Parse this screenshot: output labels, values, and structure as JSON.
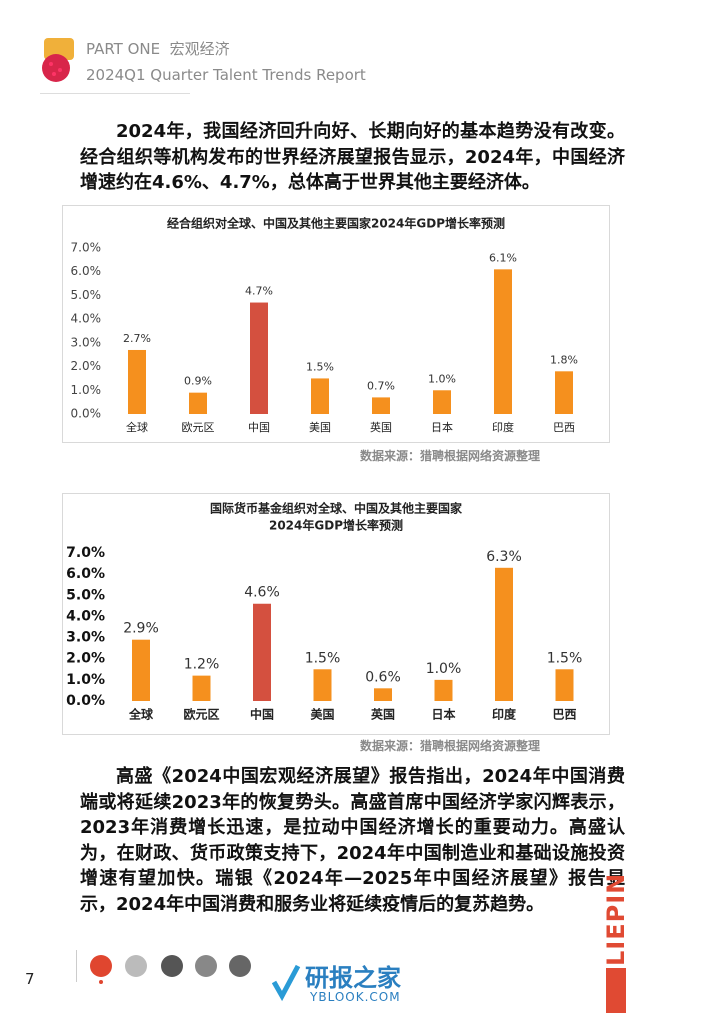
{
  "header": {
    "part": "PART ONE",
    "section": "宏观经济",
    "report": "2024Q1 Quarter Talent Trends Report"
  },
  "paragraphs": [
    "2024年，我国经济回升向好、长期向好的基本趋势没有改变。经合组织等机构发布的世界经济展望报告显示，2024年，中国经济增速约在4.6%、4.7%，总体高于世界其他主要经济体。",
    "高盛《2024中国宏观经济展望》报告指出，2024年中国消费端或将延续2023年的恢复势头。高盛首席中国经济学家闪辉表示，2023年消费增长迅速，是拉动中国经济增长的重要动力。高盛认为，在财政、货币政策支持下，2024年中国制造业和基础设施投资增速有望加快。瑞银《2024年—2025年中国经济展望》报告显示，2024年中国消费和服务业将延续疫情后的复苏趋势。"
  ],
  "chart_data": [
    {
      "type": "bar",
      "title": [
        "经合组织对全球、中国及其他主要国家2024年GDP增长率预测"
      ],
      "categories": [
        "全球",
        "欧元区",
        "中国",
        "美国",
        "英国",
        "日本",
        "印度",
        "巴西"
      ],
      "values": [
        2.7,
        0.9,
        4.7,
        1.5,
        0.7,
        1.0,
        6.1,
        1.8
      ],
      "value_labels": [
        "2.7%",
        "0.9%",
        "4.7%",
        "1.5%",
        "0.7%",
        "1.0%",
        "6.1%",
        "1.8%"
      ],
      "colors": [
        "#f5901e",
        "#f5901e",
        "#d4503f",
        "#f5901e",
        "#f5901e",
        "#f5901e",
        "#f5901e",
        "#f5901e"
      ],
      "ylim": [
        0,
        7
      ],
      "yticks": [
        {
          "value": 0,
          "label": "0.0%"
        },
        {
          "value": 1,
          "label": "1.0%"
        },
        {
          "value": 2,
          "label": "2.0%"
        },
        {
          "value": 3,
          "label": "3.0%"
        },
        {
          "value": 4,
          "label": "4.0%"
        },
        {
          "value": 5,
          "label": "5.0%"
        },
        {
          "value": 6,
          "label": "6.0%"
        },
        {
          "value": 7,
          "label": "7.0%"
        }
      ],
      "source": "数据来源：猎聘根据网络资源整理"
    },
    {
      "type": "bar",
      "title": [
        "国际货币基金组织对全球、中国及其他主要国家",
        "2024年GDP增长率预测"
      ],
      "categories": [
        "全球",
        "欧元区",
        "中国",
        "美国",
        "英国",
        "日本",
        "印度",
        "巴西"
      ],
      "values": [
        2.9,
        1.2,
        4.6,
        1.5,
        0.6,
        1.0,
        6.3,
        1.5
      ],
      "value_labels": [
        "2.9%",
        "1.2%",
        "4.6%",
        "1.5%",
        "0.6%",
        "1.0%",
        "6.3%",
        "1.5%"
      ],
      "colors": [
        "#f5901e",
        "#f5901e",
        "#d4503f",
        "#f5901e",
        "#f5901e",
        "#f5901e",
        "#f5901e",
        "#f5901e"
      ],
      "ylim": [
        0,
        7
      ],
      "yticks": [
        {
          "value": 0,
          "label": "0.0%"
        },
        {
          "value": 1,
          "label": "1.0%"
        },
        {
          "value": 2,
          "label": "2.0%"
        },
        {
          "value": 3,
          "label": "3.0%"
        },
        {
          "value": 4,
          "label": "4.0%"
        },
        {
          "value": 5,
          "label": "5.0%"
        },
        {
          "value": 6,
          "label": "6.0%"
        },
        {
          "value": 7,
          "label": "7.0%"
        }
      ],
      "source": "数据来源：猎聘根据网络资源整理"
    }
  ],
  "footer": {
    "page": "7",
    "brand": "LIEPIN",
    "watermark": "研报之家",
    "watermark_url": "YBLOOK.COM"
  }
}
